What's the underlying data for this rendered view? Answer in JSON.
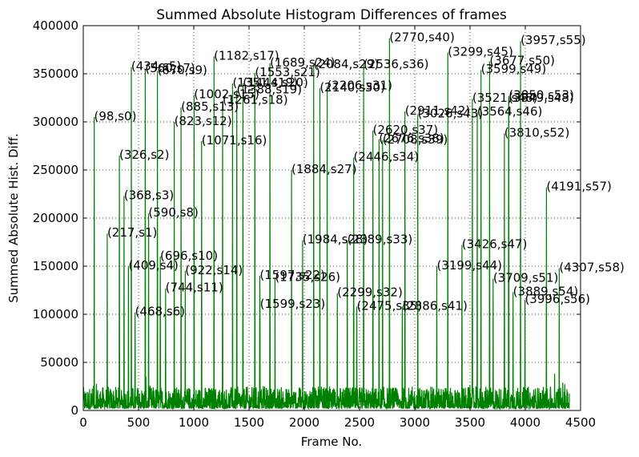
{
  "chart_data": {
    "type": "line",
    "title": "Summed Absolute Histogram Differences of frames",
    "xlabel": "Frame No.",
    "ylabel": "Summed Absolute Hist. Diff.",
    "xlim": [
      0,
      4500
    ],
    "ylim": [
      0,
      400000
    ],
    "xticks": [
      0,
      500,
      1000,
      1500,
      2000,
      2500,
      3000,
      3500,
      4000,
      4500
    ],
    "yticks": [
      0,
      50000,
      100000,
      150000,
      200000,
      250000,
      300000,
      350000,
      400000
    ],
    "grid": true,
    "line_color": "#008000",
    "baseline_noise": {
      "low": 2000,
      "high": 25000
    },
    "series": [
      {
        "x": [
          98,
          217,
          326,
          368,
          409,
          434,
          468,
          560,
          590,
          670,
          696,
          744,
          823,
          885,
          922,
          1002,
          1071,
          1182,
          1261,
          1351,
          1388,
          1444,
          1553,
          1597,
          1599,
          1689,
          1735,
          1884,
          1984,
          2084,
          2140,
          2206,
          2299,
          2389,
          2446,
          2475,
          2536,
          2620,
          2676,
          2708,
          2770,
          2886,
          2911,
          3026,
          3199,
          3299,
          3426,
          3521,
          3564,
          3599,
          3677,
          3709,
          3810,
          3849,
          3850,
          3889,
          3957,
          3996,
          4191,
          4307
        ],
        "values": [
          305000,
          184000,
          265000,
          223000,
          150000,
          357000,
          102000,
          355000,
          205000,
          353000,
          160000,
          127000,
          300000,
          315000,
          145000,
          328000,
          280000,
          368000,
          322000,
          340000,
          333000,
          340000,
          351000,
          140000,
          110000,
          361000,
          138000,
          250000,
          177000,
          359000,
          335000,
          337000,
          122000,
          177000,
          263000,
          108000,
          359000,
          291000,
          282000,
          281000,
          387000,
          108000,
          311000,
          308000,
          150000,
          372000,
          172000,
          324000,
          310000,
          354000,
          363000,
          137000,
          288000,
          324000,
          327000,
          123000,
          384000,
          115000,
          232000,
          148000
        ]
      }
    ],
    "annotations": [
      "(98,s0)",
      "(217,s1)",
      "(326,s2)",
      "(368,s3)",
      "(409,s4)",
      "(434,s5)",
      "(468,s6)",
      "(560,s7)",
      "(590,s8)",
      "(670,s9)",
      "(696,s10)",
      "(744,s11)",
      "(823,s12)",
      "(885,s13)",
      "(922,s14)",
      "(1002,s15)",
      "(1071,s16)",
      "(1182,s17)",
      "(1261,s18)",
      "(1351,s19)",
      "(1388,s19)",
      "(1444,s20)",
      "(1553,s21)",
      "(1597,s22)",
      "(1599,s23)",
      "(1689,s24)",
      "(1735,s26)",
      "(1884,s27)",
      "(1984,s28)",
      "(2084,s29)",
      "(2140,s30)",
      "(2206,s31)",
      "(2299,s32)",
      "(2389,s33)",
      "(2446,s34)",
      "(2475,s35)",
      "(2536,s36)",
      "(2620,s37)",
      "(2676,s38)",
      "(2708,s39)",
      "(2770,s40)",
      "(2886,s41)",
      "(2911,s42)",
      "(3026,s43)",
      "(3199,s44)",
      "(3299,s45)",
      "(3426,s47)",
      "(3521,s48)",
      "(3564,s46)",
      "(3599,s49)",
      "(3677,s50)",
      "(3709,s51)",
      "(3810,s52)",
      "(3849,s48)",
      "(3850,s53)",
      "(3889,s54)",
      "(3957,s55)",
      "(3996,s56)",
      "(4191,s57)",
      "(4307,s58)"
    ]
  }
}
